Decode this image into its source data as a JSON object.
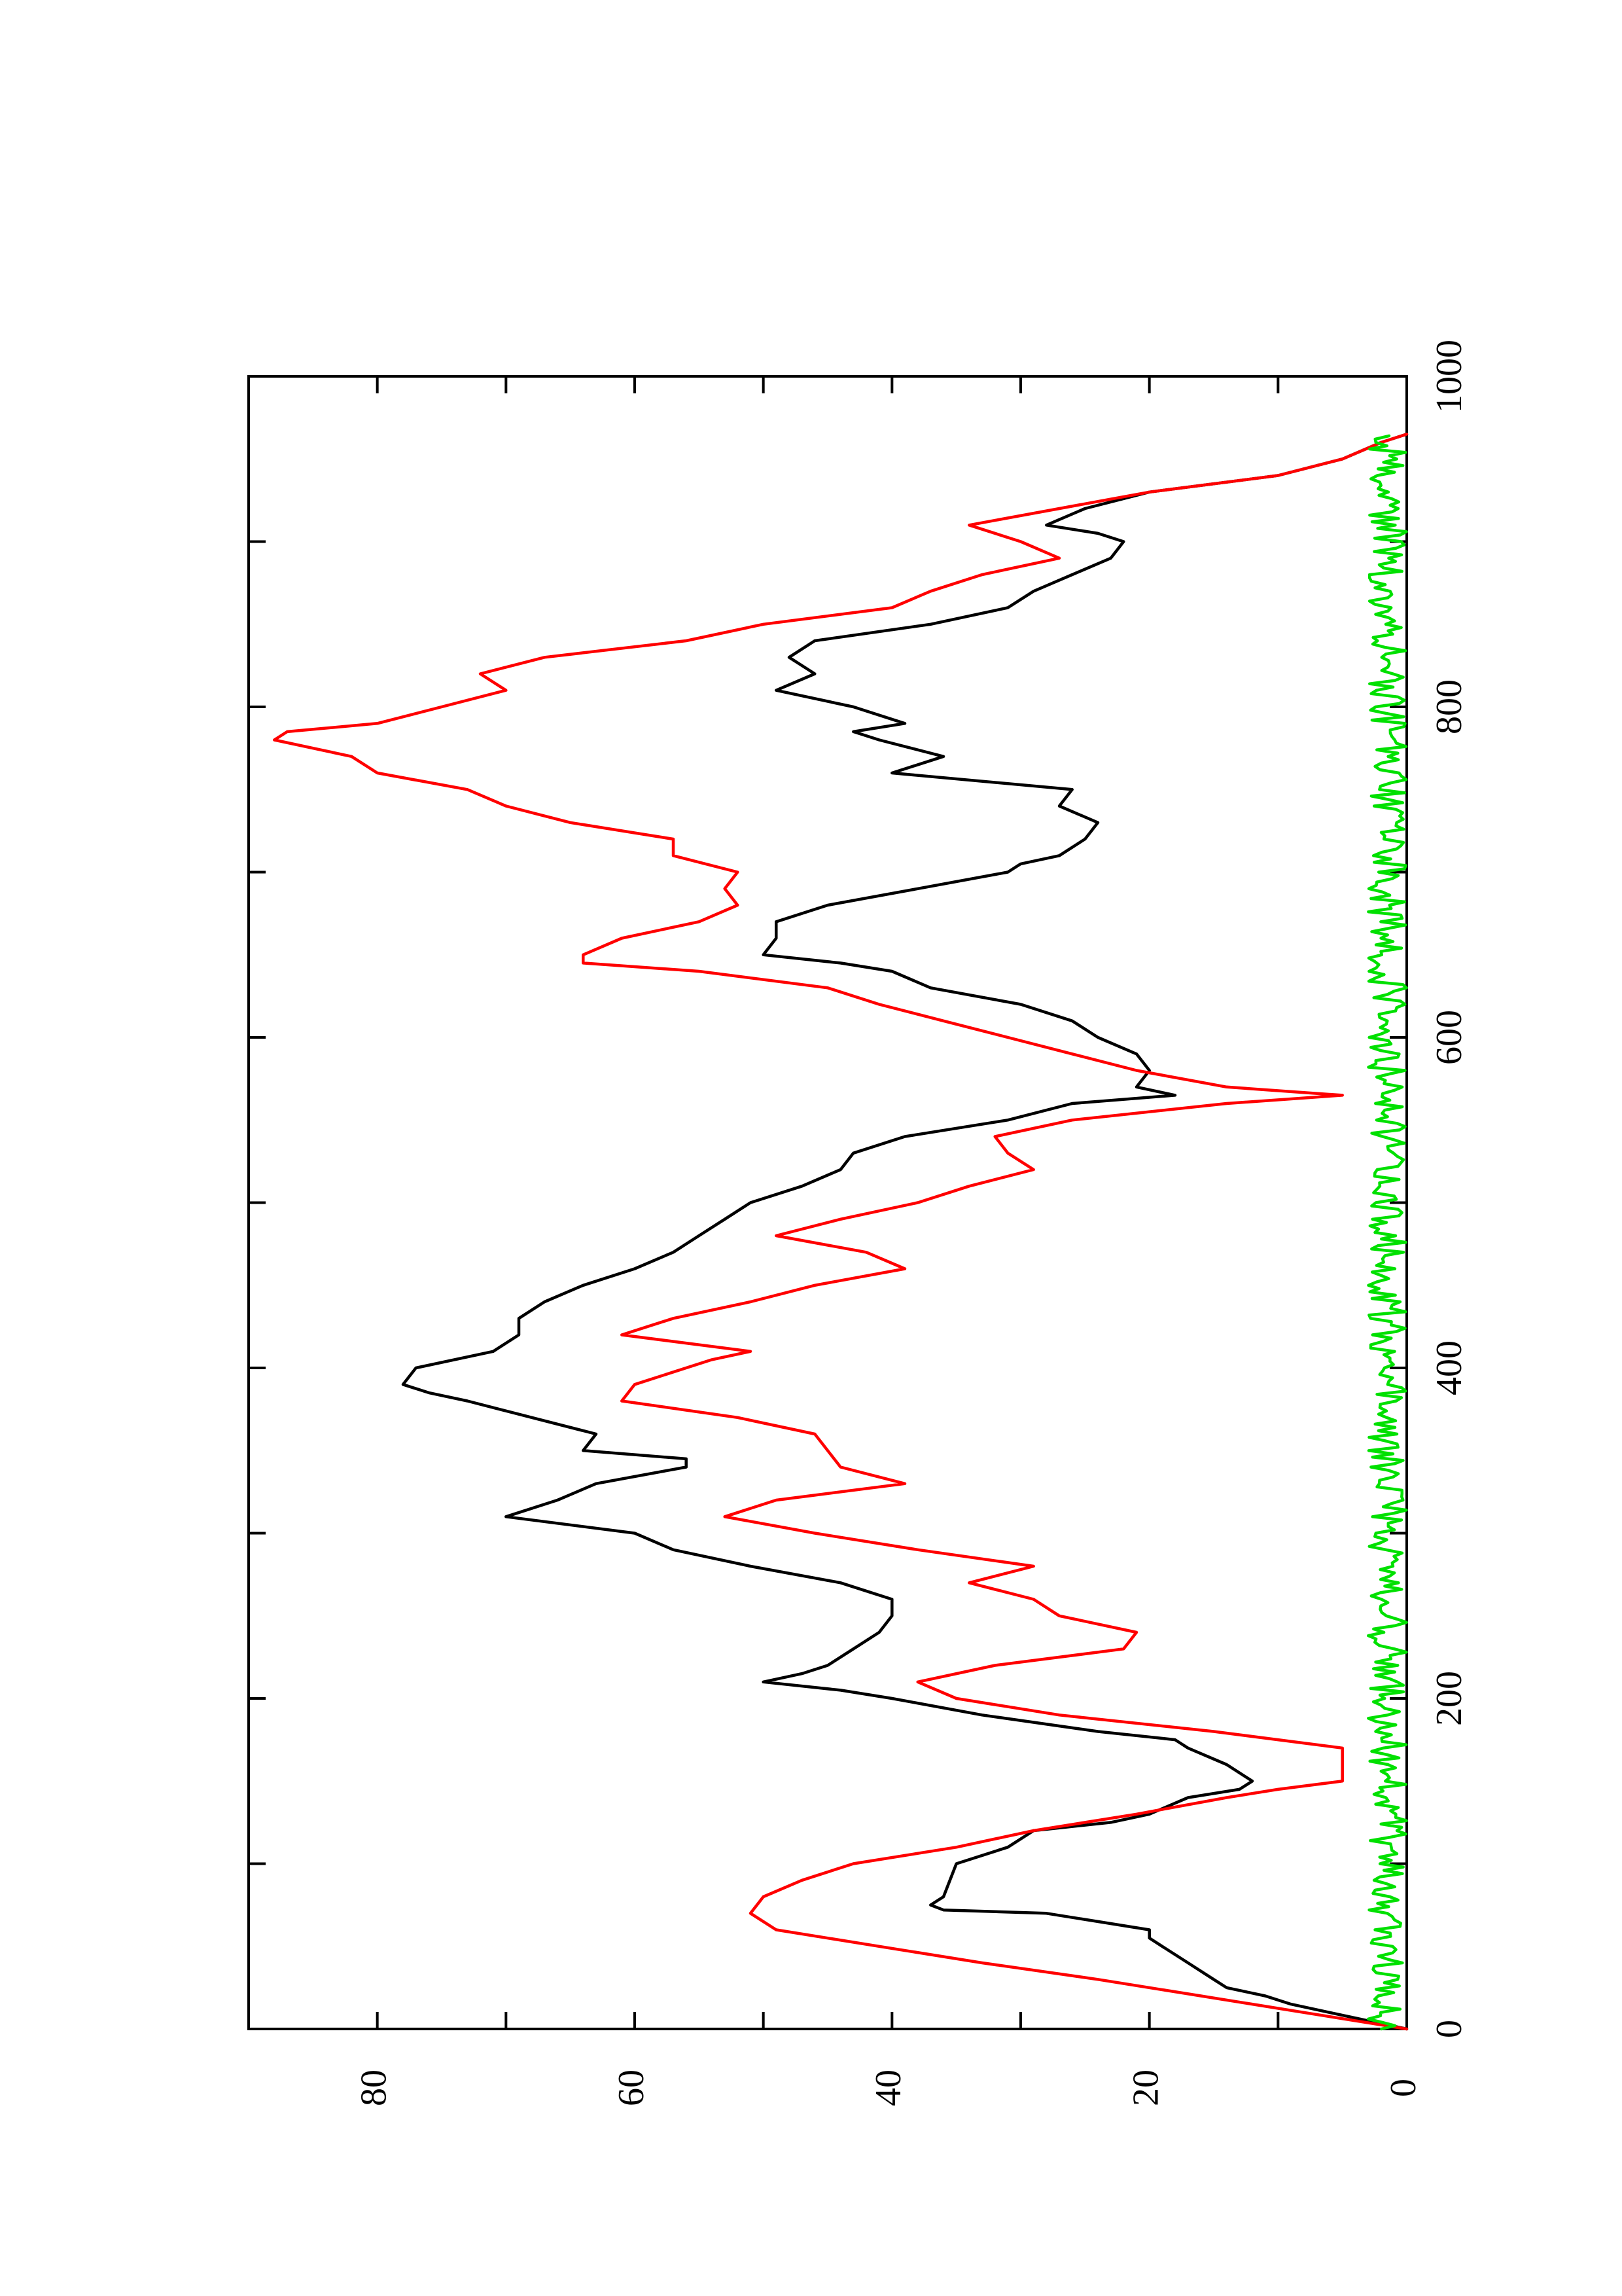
{
  "chart_data": {
    "type": "line",
    "orientation": "rotated-90-ccw",
    "title": "",
    "xlabel": "",
    "ylabel": "",
    "xlim": [
      0,
      1000
    ],
    "ylim": [
      0,
      90
    ],
    "x_ticks": [
      "0",
      "200",
      "400",
      "600",
      "800",
      "1000"
    ],
    "x_minor_ticks": [
      100,
      300,
      500,
      700,
      900
    ],
    "y_ticks": [
      "0",
      "20",
      "40",
      "60",
      "80"
    ],
    "y_minor_ticks": [
      10,
      30,
      50,
      70,
      90
    ],
    "grid": false,
    "legend": "none",
    "series": [
      {
        "color": "#000000",
        "x": [
          0,
          5,
          10,
          15,
          20,
          25,
          30,
          40,
          50,
          55,
          60,
          65,
          70,
          72,
          75,
          80,
          100,
          110,
          120,
          125,
          130,
          140,
          145,
          150,
          160,
          170,
          175,
          180,
          190,
          200,
          205,
          210,
          215,
          220,
          230,
          240,
          250,
          260,
          270,
          280,
          290,
          300,
          310,
          320,
          330,
          340,
          345,
          350,
          360,
          370,
          380,
          385,
          390,
          400,
          410,
          420,
          430,
          440,
          450,
          460,
          470,
          480,
          490,
          500,
          510,
          520,
          530,
          540,
          550,
          560,
          565,
          570,
          580,
          590,
          600,
          610,
          620,
          630,
          640,
          645,
          650,
          660,
          670,
          680,
          690,
          700,
          705,
          710,
          720,
          730,
          740,
          750,
          760,
          770,
          780,
          785,
          790,
          800,
          810,
          820,
          830,
          840,
          850,
          860,
          870,
          880,
          890,
          900,
          905,
          910,
          920,
          930,
          940,
          950,
          960,
          965
        ],
        "values": [
          0,
          3,
          6,
          9,
          11,
          14,
          15,
          17,
          19,
          20,
          20,
          24,
          28,
          36,
          37,
          36,
          35,
          31,
          29,
          23,
          20,
          17,
          13,
          12,
          14,
          17,
          18,
          24,
          33,
          40,
          44,
          50,
          47,
          45,
          43,
          41,
          40,
          40,
          44,
          51,
          57,
          60,
          70,
          66,
          63,
          56,
          56,
          64,
          63,
          68,
          73,
          76,
          78,
          77,
          71,
          69,
          69,
          67,
          64,
          60,
          57,
          55,
          53,
          51,
          47,
          44,
          43,
          39,
          31,
          26,
          18,
          21,
          20,
          21,
          24,
          26,
          30,
          37,
          40,
          44,
          50,
          49,
          49,
          45,
          38,
          31,
          30,
          27,
          25,
          24,
          27,
          26,
          40,
          36,
          41,
          43,
          39,
          43,
          49,
          46,
          48,
          46,
          37,
          31,
          29,
          26,
          23,
          22,
          24,
          28,
          25,
          20,
          10,
          5,
          2,
          0
        ]
      },
      {
        "color": "#ff0000",
        "x": [
          0,
          10,
          20,
          30,
          40,
          50,
          60,
          70,
          80,
          90,
          100,
          110,
          120,
          130,
          140,
          145,
          150,
          160,
          170,
          180,
          190,
          200,
          210,
          220,
          230,
          240,
          250,
          260,
          270,
          280,
          290,
          300,
          310,
          320,
          330,
          340,
          350,
          360,
          370,
          380,
          390,
          400,
          405,
          410,
          420,
          430,
          440,
          450,
          460,
          470,
          480,
          490,
          500,
          510,
          520,
          530,
          540,
          550,
          560,
          565,
          570,
          580,
          590,
          600,
          610,
          620,
          630,
          640,
          645,
          650,
          660,
          670,
          680,
          690,
          700,
          710,
          720,
          730,
          740,
          750,
          760,
          770,
          780,
          785,
          790,
          800,
          810,
          820,
          830,
          840,
          850,
          860,
          870,
          880,
          890,
          900,
          910,
          920,
          930,
          940,
          950,
          960,
          965
        ],
        "values": [
          0,
          8,
          16,
          24,
          33,
          41,
          49,
          51,
          50,
          47,
          43,
          35,
          29,
          21,
          14,
          10,
          5,
          5,
          5,
          15,
          27,
          35,
          38,
          32,
          22,
          21,
          27,
          29,
          34,
          29,
          38,
          46,
          53,
          49,
          39,
          44,
          45,
          46,
          52,
          61,
          60,
          56,
          54,
          51,
          61,
          57,
          51,
          46,
          39,
          42,
          49,
          44,
          38,
          34,
          29,
          31,
          32,
          26,
          14,
          5,
          14,
          21,
          26,
          31,
          36,
          41,
          45,
          55,
          64,
          64,
          61,
          55,
          52,
          53,
          52,
          57,
          57,
          65,
          70,
          73,
          80,
          82,
          88,
          87,
          80,
          75,
          70,
          72,
          67,
          56,
          50,
          40,
          37,
          33,
          27,
          30,
          34,
          27,
          20,
          10,
          5,
          2,
          0
        ]
      },
      {
        "color": "#00e000",
        "x": [
          0,
          965
        ],
        "noise_range": [
          0,
          3
        ],
        "values": [
          0,
          0
        ]
      }
    ]
  }
}
